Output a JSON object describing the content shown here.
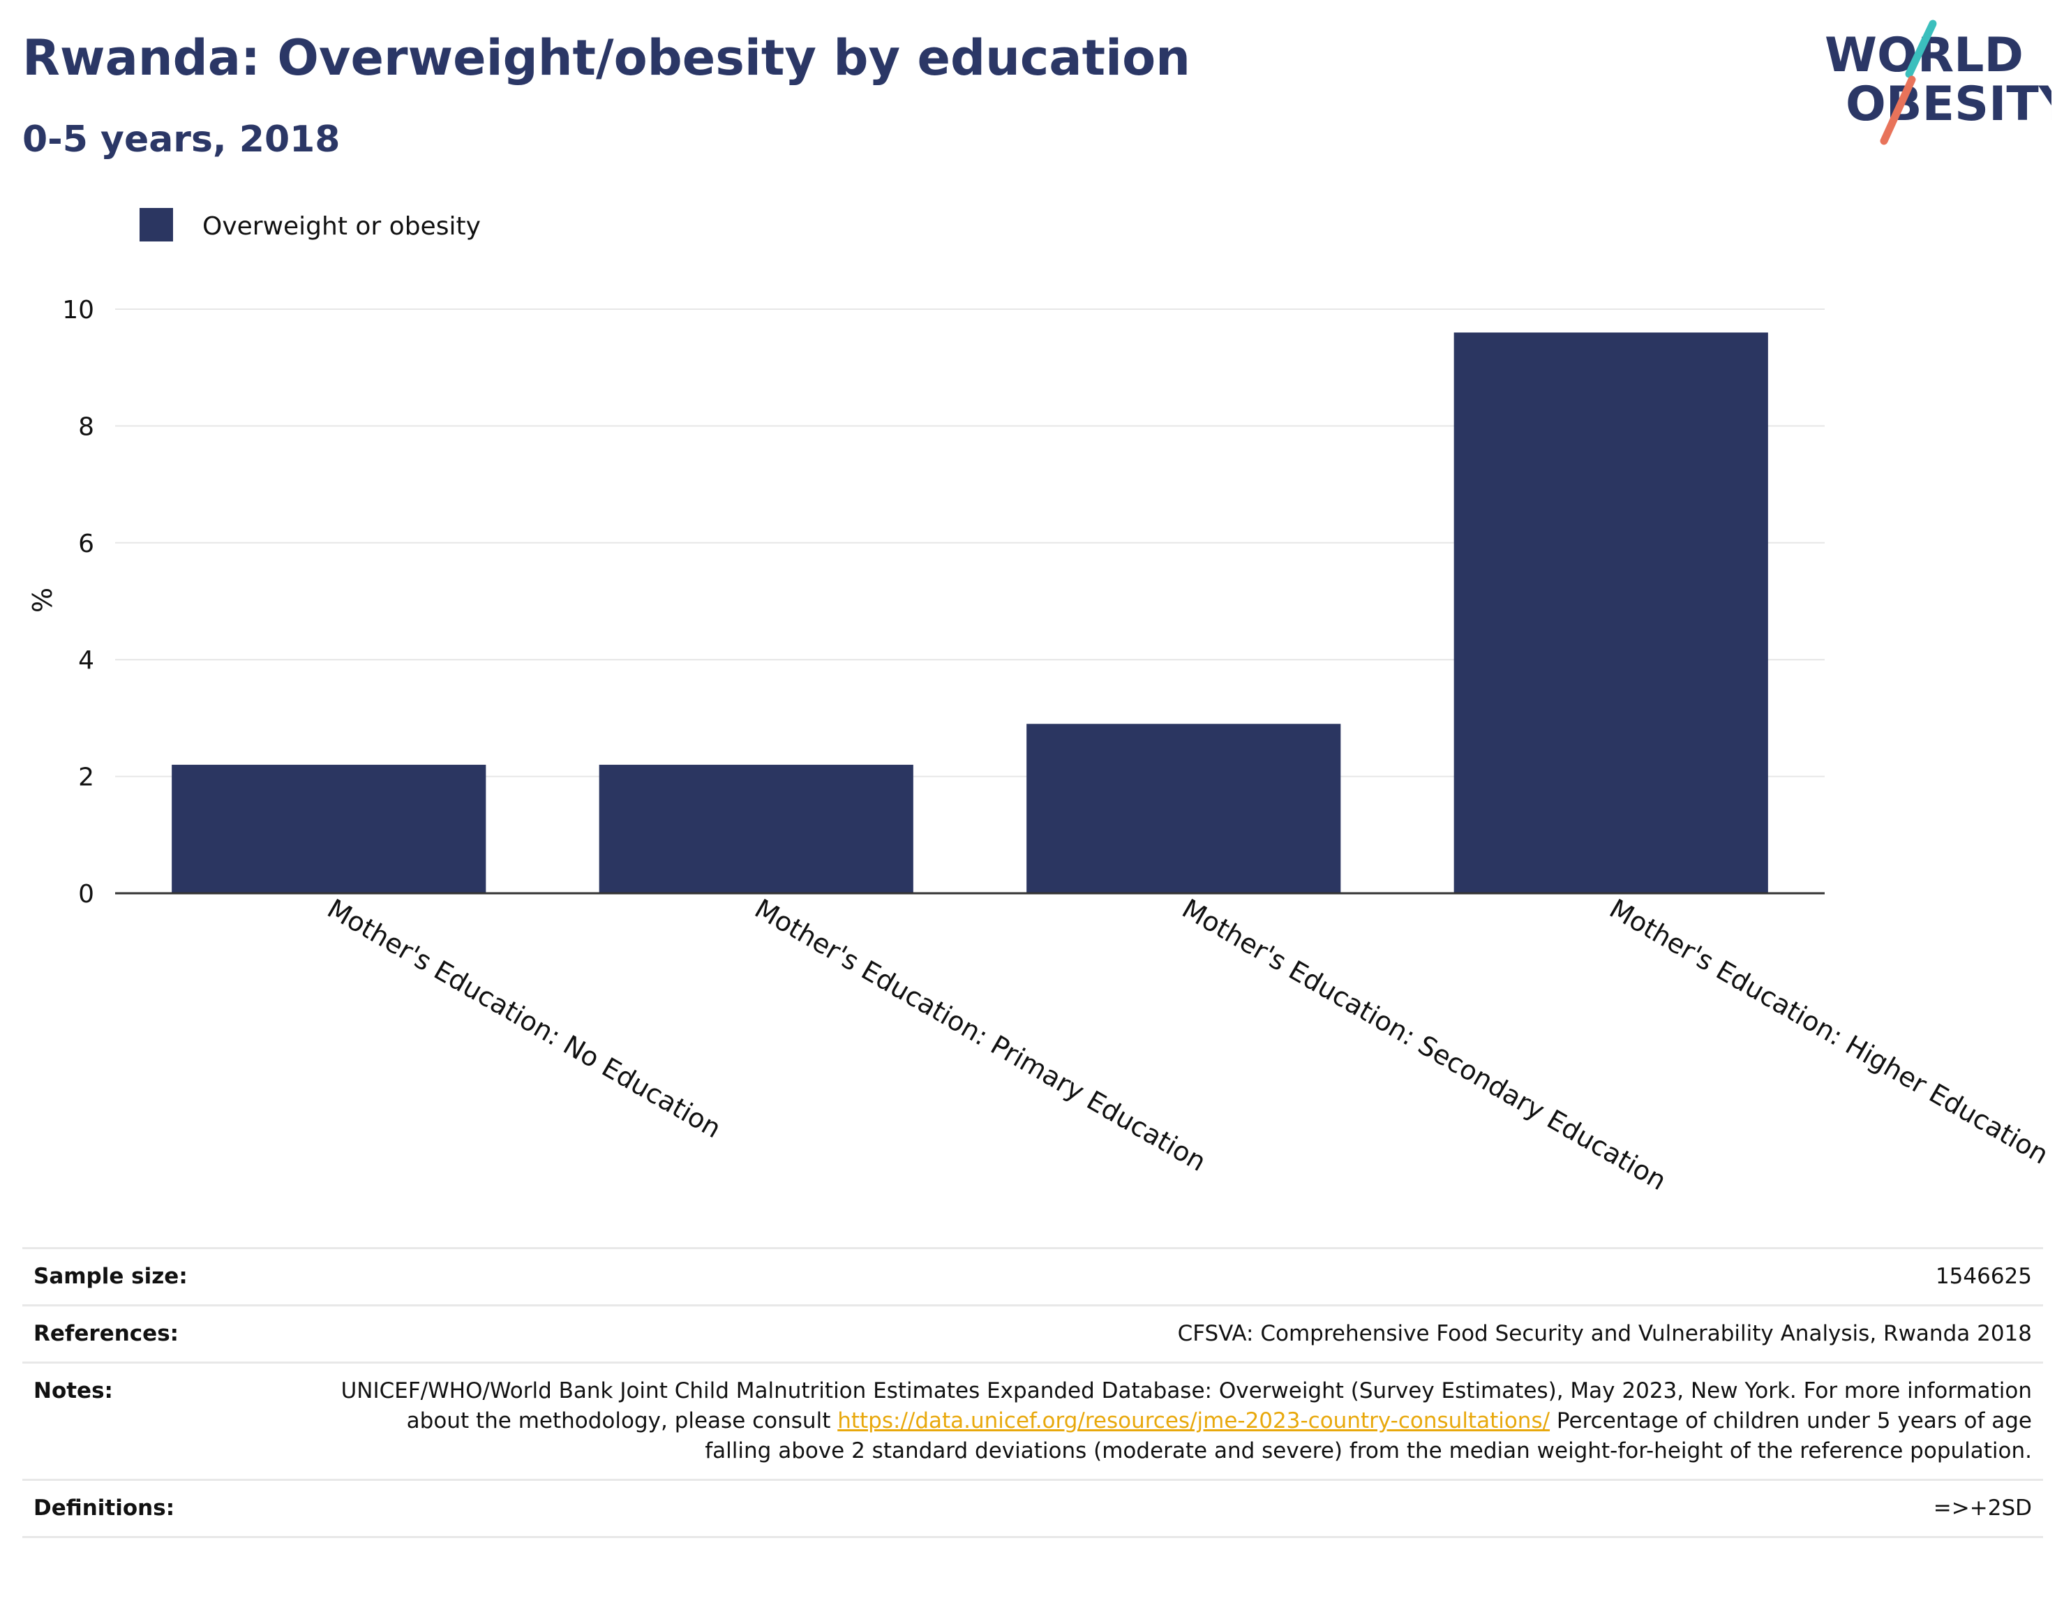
{
  "header": {
    "title": "Rwanda: Overweight/obesity by education",
    "subtitle": "0-5 years, 2018"
  },
  "logo": {
    "line1": "WORLD",
    "line2": "OBESITY",
    "colors": {
      "text": "#2b3766",
      "slash_top": "#3bbfbd",
      "slash_bottom": "#e8735a"
    }
  },
  "chart_data": {
    "type": "bar",
    "title": "",
    "xlabel": "",
    "ylabel": "%",
    "ylim": [
      0,
      10
    ],
    "yticks": [
      0,
      2,
      4,
      6,
      8,
      10
    ],
    "grid": true,
    "legend": "top-left",
    "categories": [
      "Mother's Education: No Education",
      "Mother's Education: Primary Education",
      "Mother's Education: Secondary Education",
      "Mother's Education: Higher Education"
    ],
    "series": [
      {
        "name": "Overweight or obesity",
        "color": "#2b3661",
        "values": [
          2.2,
          2.2,
          2.9,
          9.6
        ]
      }
    ]
  },
  "info": {
    "sample_size": {
      "label": "Sample size:",
      "value": "1546625"
    },
    "references": {
      "label": "References:",
      "value": "CFSVA: Comprehensive Food Security and Vulnerability Analysis, Rwanda 2018"
    },
    "notes": {
      "label": "Notes:",
      "text_before_link": "UNICEF/WHO/World Bank Joint Child Malnutrition Estimates Expanded Database: Overweight (Survey Estimates), May 2023, New York. For more information about the methodology, please consult ",
      "link": "https://data.unicef.org/resources/jme-2023-country-consultations/",
      "text_after_link": "Percentage of children under 5 years of age falling above 2 standard deviations (moderate and severe) from the median weight-for-height of the reference population."
    },
    "definitions": {
      "label": "Definitions:",
      "value": "=>+2SD"
    }
  }
}
